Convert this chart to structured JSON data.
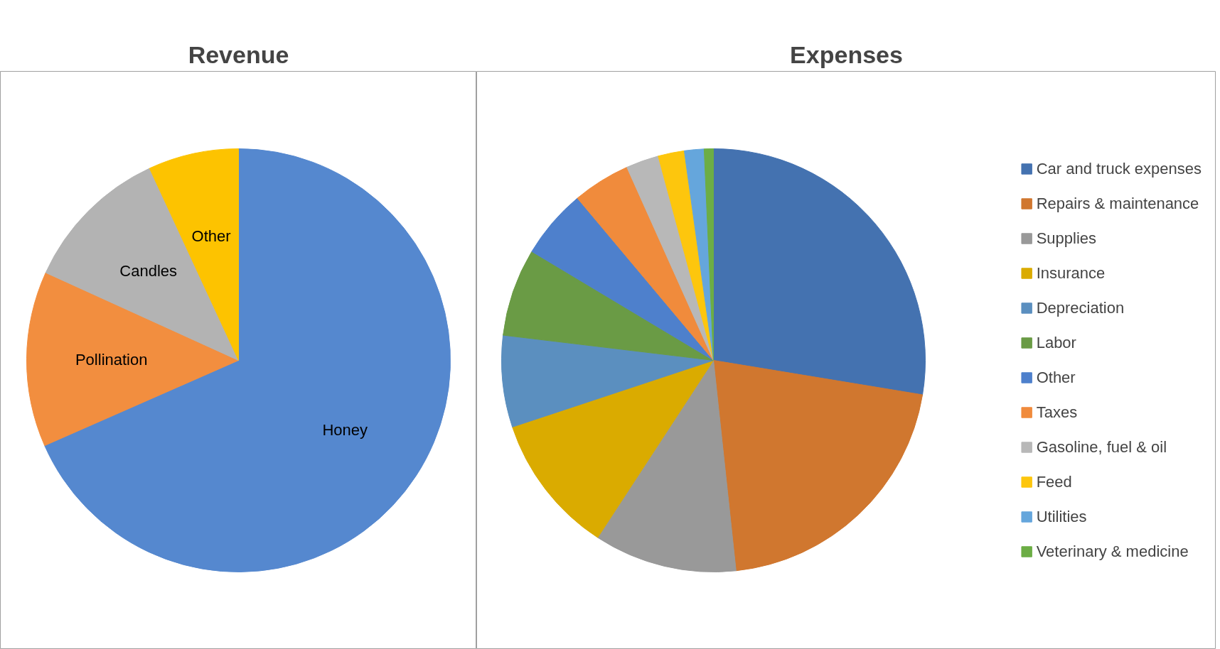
{
  "chart_data": [
    {
      "type": "pie",
      "title": "Revenue",
      "categories": [
        "Honey",
        "Pollination",
        "Candles",
        "Other"
      ],
      "values": [
        68.4,
        13.4,
        11.3,
        6.9
      ],
      "colors": [
        "#5588cf",
        "#f28e3f",
        "#b3b3b3",
        "#fdc300"
      ],
      "legend": false
    },
    {
      "type": "pie",
      "title": "Expenses",
      "categories": [
        "Car and truck expenses",
        "Repairs & maintenance",
        "Supplies",
        "Insurance",
        "Depreciation",
        "Labor",
        "Other",
        "Taxes",
        "Gasoline, fuel & oil",
        "Feed",
        "Utilities",
        "Veterinary & medicine"
      ],
      "values": [
        27.6,
        20.7,
        10.9,
        10.7,
        7.0,
        6.7,
        5.3,
        4.4,
        2.5,
        2.0,
        1.5,
        0.7
      ],
      "colors": [
        "#4472b0",
        "#d0772f",
        "#999999",
        "#daab00",
        "#5b8fbf",
        "#6a9b45",
        "#4e80cc",
        "#f08b3c",
        "#b8b8b8",
        "#fdc60d",
        "#65a6dc",
        "#6cad45"
      ],
      "legend": "right"
    }
  ]
}
